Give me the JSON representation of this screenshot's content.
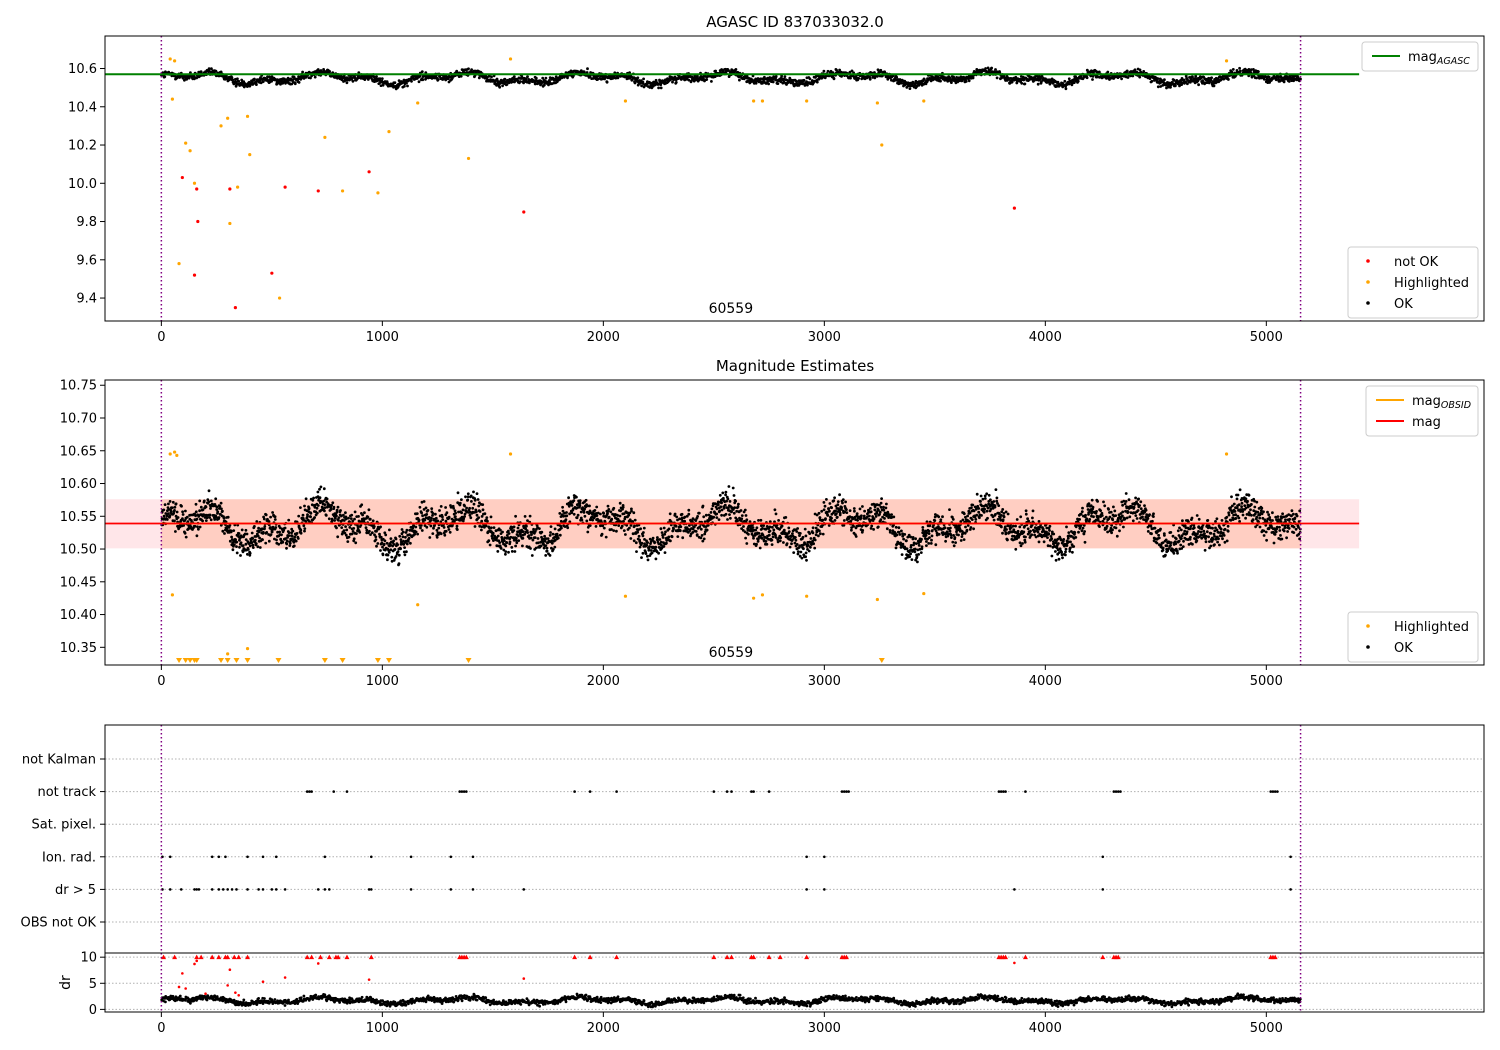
{
  "figure": {
    "title": "AGASC ID 837033032.0"
  },
  "chart_data": [
    {
      "type": "scatter",
      "title": "",
      "xlabel": "",
      "ylabel": "",
      "xlim": [
        -255,
        5985
      ],
      "ylim": [
        9.28,
        10.77
      ],
      "xticks": [
        0,
        1000,
        2000,
        3000,
        4000,
        5000
      ],
      "xtick_labels": [
        "0",
        "1000",
        "2000",
        "3000",
        "4000",
        "5000"
      ],
      "yticks": [
        9.4,
        9.6,
        9.8,
        10.0,
        10.2,
        10.4,
        10.6
      ],
      "ytick_labels": [
        "9.4",
        "9.6",
        "9.8",
        "10.0",
        "10.2",
        "10.4",
        "10.6"
      ],
      "annotation": "60559",
      "vlines": [
        0,
        5155
      ],
      "reference_line": {
        "name": "mag_AGASC",
        "y": 10.57,
        "x_range": [
          -255,
          5420
        ],
        "color": "#008000"
      },
      "legend_top": [
        {
          "label": "mag",
          "sub": "AGASC",
          "color": "#008000",
          "kind": "line"
        }
      ],
      "legend_bottom": [
        {
          "label": "not OK",
          "color": "#ff0000",
          "kind": "dot"
        },
        {
          "label": "Highlighted",
          "color": "#ffa500",
          "kind": "dot"
        },
        {
          "label": "OK",
          "color": "#000000",
          "kind": "dot"
        }
      ],
      "series": [
        {
          "name": "OK",
          "color": "#000000",
          "x_range": [
            0,
            5155
          ],
          "baseline": 10.55,
          "amplitude": 0.035,
          "scatter": 0.02
        },
        {
          "name": "Highlighted",
          "color": "#ffa500",
          "points": [
            [
              40,
              10.65
            ],
            [
              50,
              10.44
            ],
            [
              60,
              10.64
            ],
            [
              80,
              9.58
            ],
            [
              110,
              10.21
            ],
            [
              130,
              10.17
            ],
            [
              150,
              10.0
            ],
            [
              270,
              10.3
            ],
            [
              300,
              10.34
            ],
            [
              310,
              9.79
            ],
            [
              345,
              9.98
            ],
            [
              390,
              10.35
            ],
            [
              400,
              10.15
            ],
            [
              535,
              9.4
            ],
            [
              740,
              10.24
            ],
            [
              820,
              9.96
            ],
            [
              980,
              9.95
            ],
            [
              1030,
              10.27
            ],
            [
              1160,
              10.42
            ],
            [
              1390,
              10.13
            ],
            [
              1580,
              10.65
            ],
            [
              2100,
              10.43
            ],
            [
              2680,
              10.43
            ],
            [
              2720,
              10.43
            ],
            [
              2920,
              10.43
            ],
            [
              3240,
              10.42
            ],
            [
              3260,
              10.2
            ],
            [
              3450,
              10.43
            ],
            [
              4820,
              10.64
            ]
          ]
        },
        {
          "name": "not OK",
          "color": "#ff0000",
          "points": [
            [
              95,
              10.03
            ],
            [
              150,
              9.52
            ],
            [
              160,
              9.97
            ],
            [
              165,
              9.8
            ],
            [
              310,
              9.97
            ],
            [
              335,
              9.35
            ],
            [
              500,
              9.53
            ],
            [
              560,
              9.98
            ],
            [
              710,
              9.96
            ],
            [
              940,
              10.06
            ],
            [
              1640,
              9.85
            ],
            [
              3860,
              9.87
            ]
          ]
        }
      ]
    },
    {
      "type": "scatter",
      "title": "Magnitude Estimates",
      "xlabel": "",
      "ylabel": "",
      "xlim": [
        -255,
        5985
      ],
      "ylim": [
        10.323,
        10.758
      ],
      "xticks": [
        0,
        1000,
        2000,
        3000,
        4000,
        5000
      ],
      "xtick_labels": [
        "0",
        "1000",
        "2000",
        "3000",
        "4000",
        "5000"
      ],
      "yticks": [
        10.35,
        10.4,
        10.45,
        10.5,
        10.55,
        10.6,
        10.65,
        10.7,
        10.75
      ],
      "ytick_labels": [
        "10.35",
        "10.40",
        "10.45",
        "10.50",
        "10.55",
        "10.60",
        "10.65",
        "10.70",
        "10.75"
      ],
      "annotation": "60559",
      "vlines": [
        0,
        5155
      ],
      "mag_line": {
        "y": 10.539,
        "x_range": [
          -255,
          5420
        ],
        "color": "#ff0000"
      },
      "mag_band": {
        "y_low": 10.501,
        "y_high": 10.576,
        "x_range": [
          -255,
          5420
        ],
        "color": "#ffb6c1"
      },
      "obsid_band": {
        "y_low": 10.501,
        "y_high": 10.576,
        "x_range": [
          0,
          5155
        ],
        "color": "#ffa07a"
      },
      "obsid_line": {
        "y": 10.539,
        "x_range": [
          0,
          5155
        ],
        "color": "#ffa500"
      },
      "legend_top": [
        {
          "label": "mag",
          "sub": "OBSID",
          "color": "#ffa500",
          "kind": "line"
        },
        {
          "label": "mag",
          "sub": "",
          "color": "#ff0000",
          "kind": "line"
        }
      ],
      "legend_bottom": [
        {
          "label": "Highlighted",
          "color": "#ffa500",
          "kind": "dot"
        },
        {
          "label": "OK",
          "color": "#000000",
          "kind": "dot"
        }
      ],
      "series": [
        {
          "name": "OK",
          "color": "#000000",
          "x_range": [
            0,
            5155
          ],
          "baseline": 10.535,
          "amplitude": 0.035,
          "scatter": 0.022
        },
        {
          "name": "Highlighted",
          "color": "#ffa500",
          "points": [
            [
              40,
              10.645
            ],
            [
              50,
              10.43
            ],
            [
              60,
              10.648
            ],
            [
              70,
              10.643
            ],
            [
              300,
              10.34
            ],
            [
              390,
              10.348
            ],
            [
              1160,
              10.415
            ],
            [
              1580,
              10.645
            ],
            [
              2100,
              10.428
            ],
            [
              2680,
              10.425
            ],
            [
              2720,
              10.43
            ],
            [
              2920,
              10.428
            ],
            [
              3240,
              10.423
            ],
            [
              3450,
              10.432
            ],
            [
              4820,
              10.645
            ]
          ]
        },
        {
          "name": "Highlighted (below range)",
          "color": "#ffa500",
          "marker": "triangle-down",
          "x": [
            80,
            110,
            130,
            150,
            160,
            270,
            300,
            340,
            390,
            530,
            740,
            820,
            980,
            1030,
            1390,
            3260
          ]
        }
      ]
    },
    {
      "type": "scatter",
      "title": "",
      "xlim": [
        -255,
        5985
      ],
      "flag_rows": [
        "not Kalman",
        "not track",
        "Sat. pixel.",
        "Ion. rad.",
        "dr > 5",
        "OBS not OK"
      ],
      "flags": {
        "not Kalman": [],
        "not track": [
          660,
          670,
          680,
          780,
          840,
          1350,
          1360,
          1370,
          1380,
          1870,
          1940,
          2060,
          2500,
          2560,
          2580,
          2670,
          2680,
          2750,
          3080,
          3090,
          3100,
          3110,
          3790,
          3800,
          3810,
          3820,
          3910,
          4310,
          4320,
          4330,
          4340,
          5020,
          5030,
          5040,
          5050
        ],
        "Sat. pixel.": [],
        "Ion. rad.": [
          5,
          40,
          230,
          260,
          290,
          390,
          460,
          520,
          740,
          950,
          1130,
          1310,
          1410,
          2920,
          3000,
          4260,
          5110
        ],
        "dr > 5": [
          5,
          40,
          90,
          150,
          160,
          170,
          230,
          260,
          280,
          300,
          320,
          340,
          390,
          440,
          460,
          500,
          520,
          560,
          710,
          740,
          760,
          940,
          950,
          1130,
          1310,
          1410,
          1640,
          2920,
          3000,
          3860,
          4260,
          5110
        ],
        "OBS not OK": []
      }
    },
    {
      "type": "scatter",
      "title": "",
      "xlabel": "",
      "ylabel": "dr",
      "xlim": [
        -255,
        5985
      ],
      "ylim": [
        -0.5,
        10.8
      ],
      "xticks": [
        0,
        1000,
        2000,
        3000,
        4000,
        5000
      ],
      "xtick_labels": [
        "0",
        "1000",
        "2000",
        "3000",
        "4000",
        "5000"
      ],
      "yticks": [
        0,
        5,
        10
      ],
      "ytick_labels": [
        "0",
        "5",
        "10"
      ],
      "vlines": [
        0,
        5155
      ],
      "series": [
        {
          "name": "OK",
          "color": "#000000",
          "x_range": [
            0,
            5155
          ],
          "baseline": 1.7,
          "amplitude": 0.7,
          "scatter": 0.5
        },
        {
          "name": "not OK",
          "color": "#ff0000",
          "points": [
            [
              80,
              4.3
            ],
            [
              95,
              6.9
            ],
            [
              110,
              4.0
            ],
            [
              150,
              8.7
            ],
            [
              160,
              9.3
            ],
            [
              200,
              3.0
            ],
            [
              300,
              4.6
            ],
            [
              310,
              7.6
            ],
            [
              335,
              3.2
            ],
            [
              350,
              2.7
            ],
            [
              460,
              5.3
            ],
            [
              560,
              6.1
            ],
            [
              710,
              8.8
            ],
            [
              940,
              5.7
            ],
            [
              1640,
              5.9
            ],
            [
              3860,
              8.9
            ]
          ]
        },
        {
          "name": "not OK (clipped)",
          "color": "#ff0000",
          "marker": "triangle-up",
          "x": [
            10,
            60,
            160,
            180,
            230,
            260,
            290,
            300,
            330,
            350,
            390,
            660,
            680,
            720,
            760,
            790,
            800,
            840,
            950,
            1350,
            1360,
            1370,
            1380,
            1870,
            1940,
            2060,
            2500,
            2560,
            2580,
            2670,
            2680,
            2750,
            2800,
            2920,
            3080,
            3090,
            3100,
            3790,
            3800,
            3810,
            3820,
            3910,
            4260,
            4310,
            4320,
            4330,
            5020,
            5030,
            5040
          ]
        }
      ]
    }
  ]
}
